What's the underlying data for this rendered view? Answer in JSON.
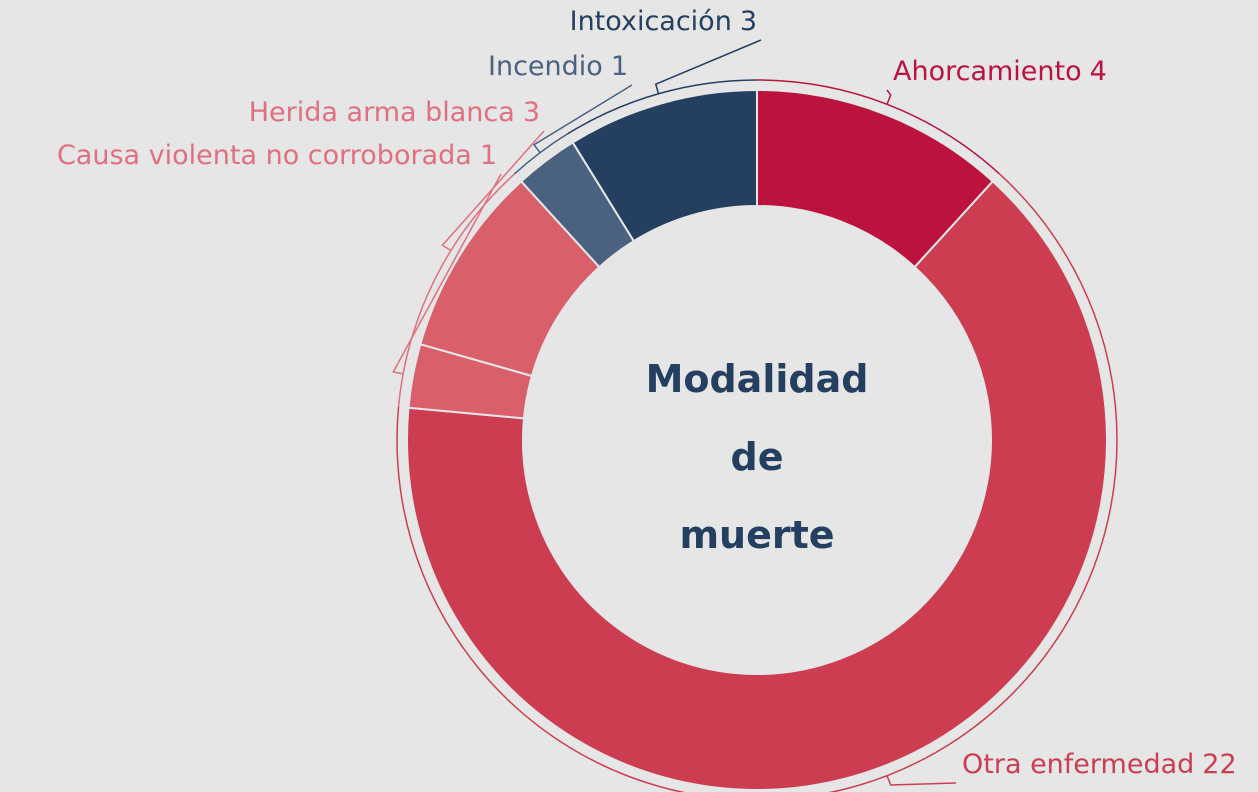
{
  "chart_data": {
    "type": "donut",
    "title": "Modalidad de muerte",
    "categories": [
      "Ahorcamiento",
      "Otra enfermedad",
      "Causa violenta no corroborada",
      "Herida arma blanca",
      "Incendio",
      "Intoxicación"
    ],
    "values": [
      4,
      22,
      1,
      3,
      1,
      3
    ],
    "colors": [
      "#bb133e",
      "#cc3d52",
      "#d95f6a",
      "#d95f6a",
      "#4a6180",
      "#243f60"
    ],
    "label_colors": [
      "#bb133e",
      "#cc3d52",
      "#e07080",
      "#e07080",
      "#4a6180",
      "#243f60"
    ]
  }
}
